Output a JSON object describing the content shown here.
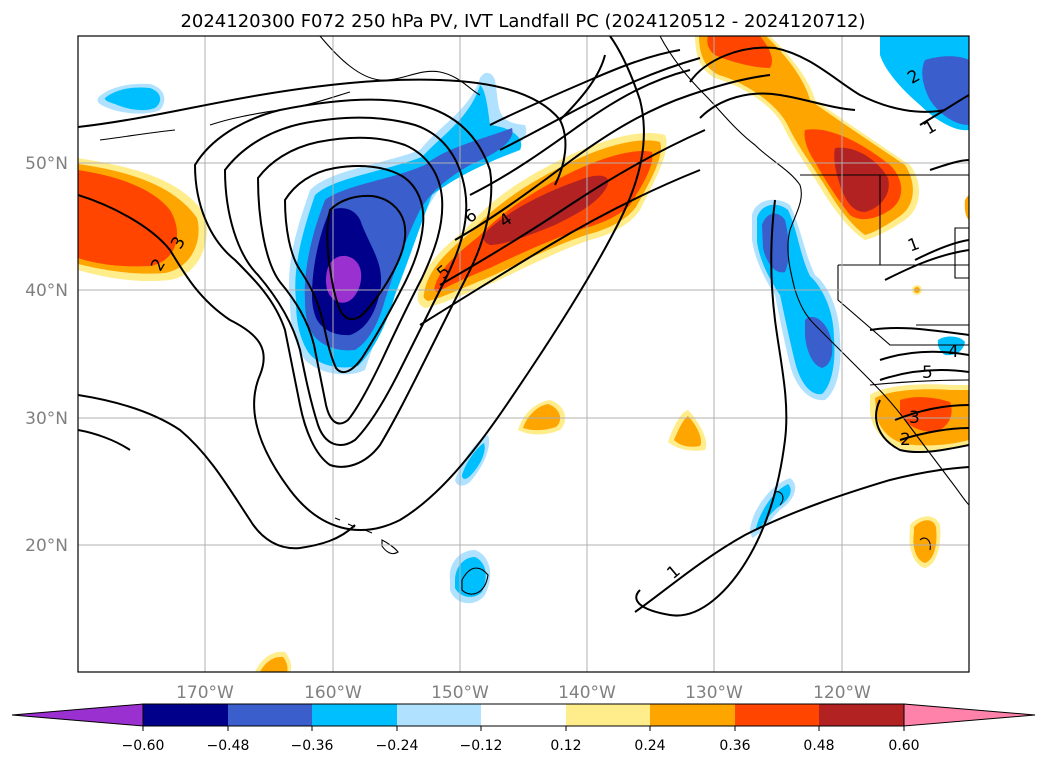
{
  "title": "2024120300 F072 250 hPa PV, IVT Landfall PC (2024120512 - 2024120712)",
  "map": {
    "lon_labels": [
      "170°W",
      "160°W",
      "150°W",
      "140°W",
      "130°W",
      "120°W"
    ],
    "lat_labels": [
      "50°N",
      "40°N",
      "30°N",
      "20°N"
    ],
    "contour_labels": [
      "3",
      "2",
      "6",
      "4",
      "5",
      "2",
      "1",
      "1",
      "4",
      "5",
      "3",
      "2",
      "1"
    ]
  },
  "colorbar": {
    "ticks": [
      "−0.60",
      "−0.48",
      "−0.36",
      "−0.24",
      "−0.12",
      "0.12",
      "0.24",
      "0.36",
      "0.48",
      "0.60"
    ],
    "colors": {
      "under": "#9933cc",
      "b1": "#9b30d0",
      "b2": "#00008b",
      "b3": "#3a5fcd",
      "b4": "#00bfff",
      "b5": "#b0e2ff",
      "b6": "#ffffff",
      "b7": "#ffec8b",
      "b8": "#ffa500",
      "b9": "#ff4500",
      "b10": "#b22222",
      "over": "#ff82ab"
    }
  }
}
